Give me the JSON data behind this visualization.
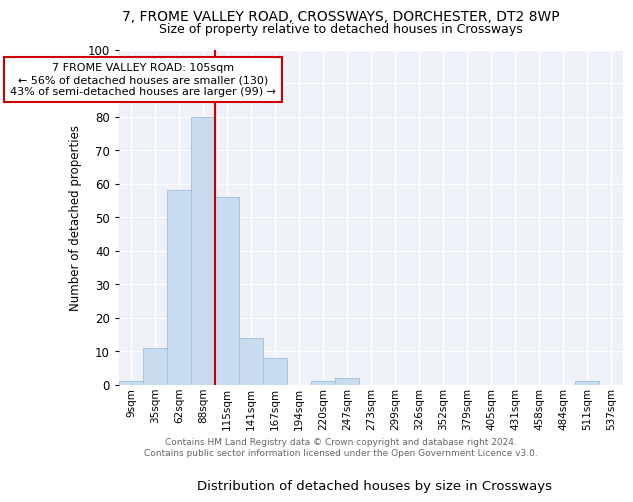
{
  "title1": "7, FROME VALLEY ROAD, CROSSWAYS, DORCHESTER, DT2 8WP",
  "title2": "Size of property relative to detached houses in Crossways",
  "xlabel": "Distribution of detached houses by size in Crossways",
  "ylabel": "Number of detached properties",
  "bin_labels": [
    "9sqm",
    "35sqm",
    "62sqm",
    "88sqm",
    "115sqm",
    "141sqm",
    "167sqm",
    "194sqm",
    "220sqm",
    "247sqm",
    "273sqm",
    "299sqm",
    "326sqm",
    "352sqm",
    "379sqm",
    "405sqm",
    "431sqm",
    "458sqm",
    "484sqm",
    "511sqm",
    "537sqm"
  ],
  "bar_values": [
    1,
    11,
    58,
    80,
    56,
    14,
    8,
    0,
    1,
    2,
    0,
    0,
    0,
    0,
    0,
    0,
    0,
    0,
    0,
    1,
    0
  ],
  "bar_color": "#c9dcef",
  "bar_edge_color": "#a8c4de",
  "vline_x_index": 4,
  "vline_color": "#cc0000",
  "annotation_text": "7 FROME VALLEY ROAD: 105sqm\n← 56% of detached houses are smaller (130)\n43% of semi-detached houses are larger (99) →",
  "annotation_box_color": "#ffffff",
  "annotation_box_edge": "#cc0000",
  "ylim": [
    0,
    100
  ],
  "yticks": [
    0,
    10,
    20,
    30,
    40,
    50,
    60,
    70,
    80,
    90,
    100
  ],
  "footnote": "Contains HM Land Registry data © Crown copyright and database right 2024.\nContains public sector information licensed under the Open Government Licence v3.0.",
  "bg_color": "#eef2f8"
}
